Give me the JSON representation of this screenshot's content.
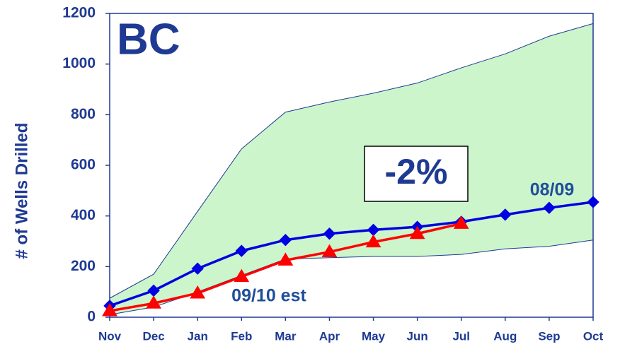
{
  "chart_data": {
    "type": "line",
    "title": "BC",
    "y_label": "# of Wells Drilled",
    "annotation": "-2%",
    "categories": [
      "Nov",
      "Dec",
      "Jan",
      "Feb",
      "Mar",
      "Apr",
      "May",
      "Jun",
      "Jul",
      "Aug",
      "Sep",
      "Oct"
    ],
    "band": {
      "color": "#ccf5cc",
      "edge_color": "#1f3a93",
      "upper": [
        75,
        170,
        418,
        665,
        810,
        850,
        885,
        925,
        985,
        1040,
        1110,
        1160
      ],
      "lower": [
        10,
        40,
        100,
        165,
        230,
        235,
        240,
        240,
        248,
        270,
        280,
        305
      ]
    },
    "series": [
      {
        "name": "08/09",
        "color": "#0000e0",
        "marker": "diamond",
        "values": [
          45,
          105,
          192,
          262,
          305,
          330,
          345,
          357,
          377,
          405,
          432,
          455
        ]
      },
      {
        "name": "09/10 est",
        "color": "#ff0000",
        "marker": "triangle",
        "values": [
          25,
          55,
          95,
          160,
          225,
          258,
          297,
          330,
          370,
          null,
          null,
          null
        ]
      }
    ],
    "ylim": [
      0,
      1200
    ],
    "yticks": [
      0,
      200,
      400,
      600,
      800,
      1000,
      1200
    ]
  }
}
